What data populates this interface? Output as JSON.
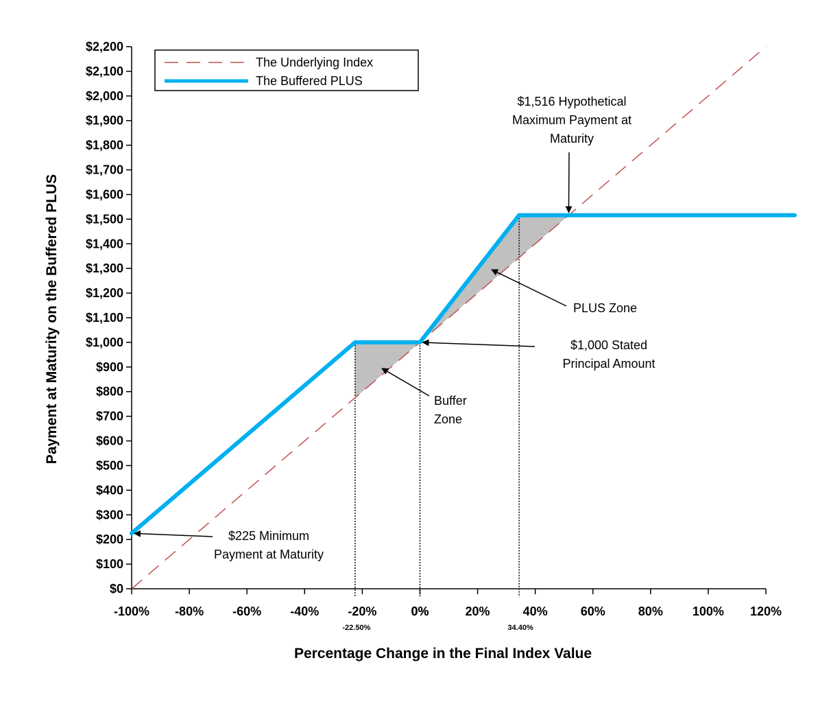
{
  "chart_data": {
    "type": "line",
    "xlabel": "Percentage Change in the Final Index Value",
    "ylabel": "Payment at Maturity on the Buffered PLUS",
    "xlim": [
      -100,
      120
    ],
    "ylim": [
      0,
      2200
    ],
    "x_ticks": [
      -100,
      -80,
      -60,
      -40,
      -20,
      0,
      20,
      40,
      60,
      80,
      100,
      120
    ],
    "x_tick_labels": [
      "-100%",
      "-80%",
      "-60%",
      "-40%",
      "-20%",
      "0%",
      "20%",
      "40%",
      "60%",
      "80%",
      "100%",
      "120%"
    ],
    "y_ticks": [
      0,
      100,
      200,
      300,
      400,
      500,
      600,
      700,
      800,
      900,
      1000,
      1100,
      1200,
      1300,
      1400,
      1500,
      1600,
      1700,
      1800,
      1900,
      2000,
      2100,
      2200
    ],
    "y_tick_labels": [
      "$0",
      "$100",
      "$200",
      "$300",
      "$400",
      "$500",
      "$600",
      "$700",
      "$800",
      "$900",
      "$1,000",
      "$1,100",
      "$1,200",
      "$1,300",
      "$1,400",
      "$1,500",
      "$1,600",
      "$1,700",
      "$1,800",
      "$1,900",
      "$2,000",
      "$2,100",
      "$2,200"
    ],
    "special_x_ticks": [
      {
        "x": -22.5,
        "label": "-22.50%"
      },
      {
        "x": 0,
        "label": "0%"
      },
      {
        "x": 34.4,
        "label": "34.40%"
      }
    ],
    "legend_position": "top-left",
    "series": [
      {
        "name": "The Underlying Index",
        "style": "dashed",
        "color": "#c0504d",
        "points": [
          [
            -100,
            0
          ],
          [
            120,
            2200
          ]
        ]
      },
      {
        "name": "The Buffered PLUS",
        "style": "solid",
        "color": "#00b0f0",
        "points": [
          [
            -100,
            225
          ],
          [
            -22.5,
            1000
          ],
          [
            0,
            1000
          ],
          [
            34.4,
            1516
          ],
          [
            130,
            1516
          ]
        ]
      }
    ],
    "shaded_regions": [
      {
        "name": "buffer-zone",
        "color": "#c0c0c0",
        "points": [
          [
            -22.5,
            1000
          ],
          [
            0,
            1000
          ],
          [
            -22.5,
            775
          ]
        ]
      },
      {
        "name": "plus-zone",
        "color": "#c0c0c0",
        "points": [
          [
            0,
            1000
          ],
          [
            34.4,
            1516
          ],
          [
            51.6,
            1516
          ],
          [
            34.4,
            1344
          ]
        ]
      }
    ],
    "annotations": [
      {
        "id": "max-payment",
        "lines": [
          "$1,516 Hypothetical",
          "Maximum Payment at",
          "Maturity"
        ],
        "arrow_to": [
          51.6,
          1516
        ]
      },
      {
        "id": "plus-zone",
        "lines": [
          "PLUS Zone"
        ],
        "arrow_to": [
          24,
          1300
        ]
      },
      {
        "id": "principal",
        "lines": [
          "$1,000 Stated",
          "Principal Amount"
        ],
        "arrow_to": [
          0,
          1000
        ]
      },
      {
        "id": "buffer-zone",
        "lines": [
          "Buffer",
          "Zone"
        ],
        "arrow_to": [
          -14,
          900
        ]
      },
      {
        "id": "min-payment",
        "lines": [
          "$225 Minimum",
          "Payment at Maturity"
        ],
        "arrow_to": [
          -100,
          225
        ]
      }
    ]
  }
}
